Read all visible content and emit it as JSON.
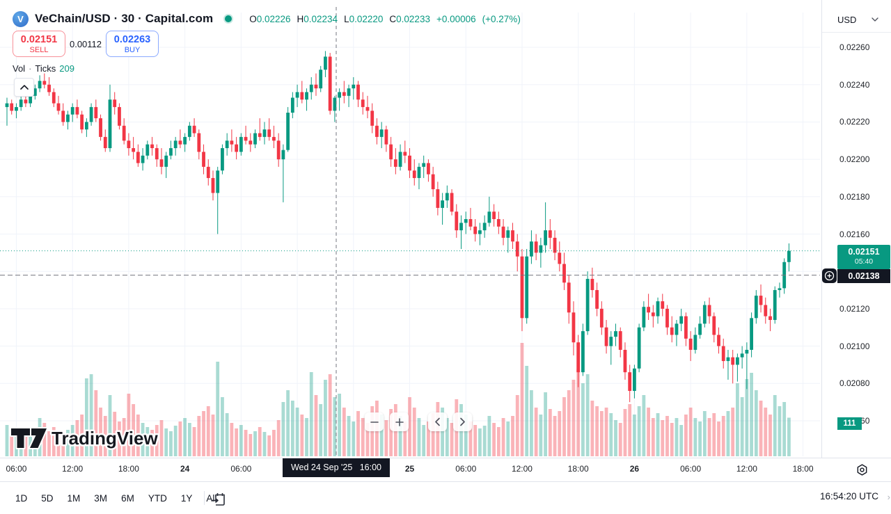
{
  "header": {
    "symbol_title": "VeChain/USD · 30 · Capital.com",
    "market_status": "open",
    "ohlc": {
      "o_label": "O",
      "o": "0.02226",
      "h_label": "H",
      "h": "0.02234",
      "l_label": "L",
      "l": "0.02220",
      "c_label": "C",
      "c": "0.02233",
      "change": "+0.00006",
      "change_pct": "(+0.27%)"
    },
    "sell_button": {
      "price": "0.02151",
      "label": "SELL"
    },
    "buy_button": {
      "price": "0.02263",
      "label": "BUY"
    },
    "spread": "0.00112",
    "legend": {
      "vol_label": "Vol",
      "sep": "·",
      "ticks_label": "Ticks",
      "ticks_value": "209"
    }
  },
  "price_axis": {
    "currency": "USD",
    "ticks": [
      "0.02260",
      "0.02240",
      "0.02220",
      "0.02200",
      "0.02180",
      "0.02160",
      "0.02140",
      "0.02120",
      "0.02100",
      "0.02080",
      "0.02060"
    ],
    "current_price_label": {
      "price": "0.02151",
      "countdown": "05:40"
    },
    "crosshair_price_label": "0.02138",
    "volume_label": "111"
  },
  "time_axis": {
    "crosshair_label": "Wed 24 Sep '25   16:00",
    "labels": [
      {
        "index": 2,
        "text": "06:00",
        "bold": false
      },
      {
        "index": 14,
        "text": "12:00",
        "bold": false
      },
      {
        "index": 26,
        "text": "18:00",
        "bold": false
      },
      {
        "index": 38,
        "text": "24",
        "bold": true
      },
      {
        "index": 50,
        "text": "06:00",
        "bold": false
      },
      {
        "index": 86,
        "text": "25",
        "bold": true
      },
      {
        "index": 98,
        "text": "06:00",
        "bold": false
      },
      {
        "index": 110,
        "text": "12:00",
        "bold": false
      },
      {
        "index": 122,
        "text": "18:00",
        "bold": false
      },
      {
        "index": 134,
        "text": "26",
        "bold": true
      },
      {
        "index": 146,
        "text": "06:00",
        "bold": false
      },
      {
        "index": 158,
        "text": "12:00",
        "bold": false
      },
      {
        "index": 170,
        "text": "18:00",
        "bold": false
      }
    ]
  },
  "toolbar": {
    "ranges": [
      "1D",
      "5D",
      "1M",
      "3M",
      "6M",
      "YTD",
      "1Y",
      "All"
    ],
    "clock": "16:54:20 UTC"
  },
  "watermark": "TradingView",
  "colors": {
    "up": "#089981",
    "down": "#f23645",
    "vol_up": "rgba(8,153,129,0.35)",
    "vol_down": "rgba(242,54,69,0.38)",
    "grid": "#f0f3fa",
    "crosshair": "#73767f",
    "label_bg": "#131722",
    "buy_accent": "#2962ff",
    "sell_accent": "#f23645"
  },
  "chart_data": {
    "type": "candlestick",
    "symbol": "VeChain/USD",
    "interval": "30 minutes",
    "title": "VeChain/USD · 30 · Capital.com",
    "ylabel": "USD",
    "price_axis_ticks": [
      0.0226,
      0.0224,
      0.0222,
      0.022,
      0.0218,
      0.0216,
      0.0214,
      0.0212,
      0.021,
      0.0208,
      0.0206
    ],
    "visible_price_range": [
      0.02055,
      0.02265
    ],
    "current_price": 0.02151,
    "bar_close_countdown": "05:40",
    "crosshair_price": 0.02138,
    "crosshair_time": "Wed 24 Sep '25 16:00",
    "last_volume": 111,
    "tick_count": 209,
    "time_gridline_indices": [
      2,
      14,
      26,
      38,
      50,
      62,
      74,
      86,
      98,
      110,
      122,
      134,
      146,
      158,
      170
    ],
    "candles_format": [
      "open",
      "high",
      "low",
      "close"
    ],
    "candles": [
      [
        0.02228,
        0.02233,
        0.02218,
        0.0223
      ],
      [
        0.0223,
        0.02232,
        0.02224,
        0.02226
      ],
      [
        0.02226,
        0.0223,
        0.02222,
        0.02228
      ],
      [
        0.02228,
        0.02234,
        0.02226,
        0.02232
      ],
      [
        0.02232,
        0.02235,
        0.02228,
        0.0223
      ],
      [
        0.0223,
        0.02236,
        0.02228,
        0.02234
      ],
      [
        0.02234,
        0.0224,
        0.02232,
        0.02238
      ],
      [
        0.02238,
        0.02245,
        0.02236,
        0.02242
      ],
      [
        0.02242,
        0.02246,
        0.02238,
        0.0224
      ],
      [
        0.0224,
        0.02244,
        0.02234,
        0.02236
      ],
      [
        0.02236,
        0.02238,
        0.02228,
        0.0223
      ],
      [
        0.0223,
        0.02234,
        0.02224,
        0.02226
      ],
      [
        0.02226,
        0.0223,
        0.02218,
        0.0222
      ],
      [
        0.0222,
        0.02226,
        0.02216,
        0.02224
      ],
      [
        0.02224,
        0.0223,
        0.0222,
        0.02228
      ],
      [
        0.02228,
        0.02232,
        0.02222,
        0.02224
      ],
      [
        0.02224,
        0.02226,
        0.02214,
        0.02216
      ],
      [
        0.02216,
        0.02222,
        0.02212,
        0.0222
      ],
      [
        0.0222,
        0.0223,
        0.02218,
        0.02228
      ],
      [
        0.02228,
        0.02232,
        0.0222,
        0.02222
      ],
      [
        0.02222,
        0.02224,
        0.0221,
        0.02212
      ],
      [
        0.02212,
        0.02216,
        0.02204,
        0.02206
      ],
      [
        0.02206,
        0.0224,
        0.02204,
        0.02232
      ],
      [
        0.02232,
        0.02236,
        0.02224,
        0.02228
      ],
      [
        0.02228,
        0.0223,
        0.02216,
        0.02218
      ],
      [
        0.02218,
        0.02222,
        0.02208,
        0.0221
      ],
      [
        0.0221,
        0.02214,
        0.02202,
        0.02206
      ],
      [
        0.02206,
        0.02212,
        0.022,
        0.02204
      ],
      [
        0.02204,
        0.02208,
        0.02196,
        0.02198
      ],
      [
        0.02198,
        0.02206,
        0.02194,
        0.02202
      ],
      [
        0.02202,
        0.0221,
        0.022,
        0.02208
      ],
      [
        0.02208,
        0.02212,
        0.02202,
        0.02206
      ],
      [
        0.02206,
        0.02208,
        0.02196,
        0.022
      ],
      [
        0.022,
        0.02206,
        0.02192,
        0.02196
      ],
      [
        0.02196,
        0.02204,
        0.0219,
        0.02202
      ],
      [
        0.02202,
        0.0221,
        0.022,
        0.02206
      ],
      [
        0.02206,
        0.02212,
        0.02202,
        0.0221
      ],
      [
        0.0221,
        0.02216,
        0.02206,
        0.02208
      ],
      [
        0.02208,
        0.02214,
        0.02204,
        0.02212
      ],
      [
        0.02212,
        0.0222,
        0.0221,
        0.02218
      ],
      [
        0.02218,
        0.02222,
        0.02212,
        0.02214
      ],
      [
        0.02214,
        0.02216,
        0.022,
        0.02204
      ],
      [
        0.02204,
        0.02208,
        0.02192,
        0.02196
      ],
      [
        0.02196,
        0.022,
        0.02186,
        0.0219
      ],
      [
        0.0219,
        0.02194,
        0.02178,
        0.02182
      ],
      [
        0.02182,
        0.02196,
        0.0216,
        0.02194
      ],
      [
        0.02194,
        0.02208,
        0.02192,
        0.02206
      ],
      [
        0.02206,
        0.02214,
        0.02202,
        0.0221
      ],
      [
        0.0221,
        0.02216,
        0.02204,
        0.02208
      ],
      [
        0.02208,
        0.02212,
        0.022,
        0.02204
      ],
      [
        0.02204,
        0.02214,
        0.02202,
        0.02212
      ],
      [
        0.02212,
        0.02218,
        0.02208,
        0.0221
      ],
      [
        0.0221,
        0.02214,
        0.02204,
        0.02208
      ],
      [
        0.02208,
        0.02216,
        0.02206,
        0.02214
      ],
      [
        0.02214,
        0.02222,
        0.0221,
        0.02212
      ],
      [
        0.02212,
        0.0222,
        0.02208,
        0.02216
      ],
      [
        0.02216,
        0.02222,
        0.0221,
        0.02212
      ],
      [
        0.02212,
        0.02218,
        0.02206,
        0.0221
      ],
      [
        0.0221,
        0.02214,
        0.02196,
        0.022
      ],
      [
        0.022,
        0.02208,
        0.02177,
        0.02205
      ],
      [
        0.02205,
        0.02228,
        0.02204,
        0.02225
      ],
      [
        0.02225,
        0.02236,
        0.02222,
        0.02233
      ],
      [
        0.02233,
        0.0224,
        0.02228,
        0.02236
      ],
      [
        0.02236,
        0.02242,
        0.0223,
        0.02232
      ],
      [
        0.02232,
        0.02238,
        0.02226,
        0.02236
      ],
      [
        0.02236,
        0.02244,
        0.02232,
        0.0224
      ],
      [
        0.0224,
        0.02246,
        0.02234,
        0.02238
      ],
      [
        0.02238,
        0.0225,
        0.02236,
        0.02248
      ],
      [
        0.02248,
        0.02258,
        0.02244,
        0.02255
      ],
      [
        0.02255,
        0.02257,
        0.02224,
        0.02226
      ],
      [
        0.02226,
        0.02234,
        0.0222,
        0.02233
      ],
      [
        0.02233,
        0.02238,
        0.02226,
        0.02236
      ],
      [
        0.02236,
        0.02242,
        0.0223,
        0.02234
      ],
      [
        0.02234,
        0.0224,
        0.02228,
        0.02238
      ],
      [
        0.02238,
        0.02244,
        0.02232,
        0.0224
      ],
      [
        0.0224,
        0.02242,
        0.02228,
        0.02232
      ],
      [
        0.02232,
        0.02236,
        0.02224,
        0.02228
      ],
      [
        0.02228,
        0.02234,
        0.02222,
        0.02226
      ],
      [
        0.02226,
        0.0223,
        0.02214,
        0.02218
      ],
      [
        0.02218,
        0.02222,
        0.02208,
        0.02212
      ],
      [
        0.02212,
        0.0222,
        0.02206,
        0.02216
      ],
      [
        0.02216,
        0.02218,
        0.02204,
        0.02208
      ],
      [
        0.02208,
        0.02212,
        0.02196,
        0.022
      ],
      [
        0.022,
        0.02206,
        0.02192,
        0.02196
      ],
      [
        0.02196,
        0.02208,
        0.02194,
        0.02204
      ],
      [
        0.02204,
        0.0221,
        0.02198,
        0.02202
      ],
      [
        0.02202,
        0.02206,
        0.0219,
        0.02194
      ],
      [
        0.02194,
        0.022,
        0.02186,
        0.0219
      ],
      [
        0.0219,
        0.02198,
        0.02184,
        0.02196
      ],
      [
        0.02196,
        0.02202,
        0.0219,
        0.02198
      ],
      [
        0.02198,
        0.022,
        0.02188,
        0.02192
      ],
      [
        0.02192,
        0.02196,
        0.0218,
        0.02184
      ],
      [
        0.02184,
        0.02188,
        0.0217,
        0.02174
      ],
      [
        0.02174,
        0.02182,
        0.02165,
        0.02178
      ],
      [
        0.02178,
        0.02186,
        0.02174,
        0.02182
      ],
      [
        0.02182,
        0.02184,
        0.0217,
        0.02172
      ],
      [
        0.02172,
        0.02176,
        0.02158,
        0.02162
      ],
      [
        0.02162,
        0.0217,
        0.02152,
        0.02166
      ],
      [
        0.02166,
        0.02172,
        0.0216,
        0.02168
      ],
      [
        0.02168,
        0.02174,
        0.02162,
        0.02164
      ],
      [
        0.02164,
        0.02168,
        0.02156,
        0.0216
      ],
      [
        0.0216,
        0.02166,
        0.02154,
        0.02162
      ],
      [
        0.02162,
        0.0217,
        0.02158,
        0.02166
      ],
      [
        0.02166,
        0.0218,
        0.02164,
        0.02172
      ],
      [
        0.02172,
        0.02176,
        0.02164,
        0.02168
      ],
      [
        0.02168,
        0.02172,
        0.0216,
        0.02164
      ],
      [
        0.02164,
        0.02168,
        0.02154,
        0.02158
      ],
      [
        0.02158,
        0.02164,
        0.0215,
        0.02162
      ],
      [
        0.02162,
        0.02166,
        0.02152,
        0.02156
      ],
      [
        0.02156,
        0.0216,
        0.0214,
        0.02148
      ],
      [
        0.02148,
        0.02152,
        0.02108,
        0.02115
      ],
      [
        0.02115,
        0.02152,
        0.02112,
        0.02148
      ],
      [
        0.02148,
        0.02162,
        0.02144,
        0.02156
      ],
      [
        0.02156,
        0.0216,
        0.02146,
        0.0215
      ],
      [
        0.0215,
        0.02158,
        0.02142,
        0.02154
      ],
      [
        0.02154,
        0.02177,
        0.0215,
        0.02162
      ],
      [
        0.02162,
        0.02168,
        0.02152,
        0.02158
      ],
      [
        0.02158,
        0.02162,
        0.02146,
        0.0215
      ],
      [
        0.0215,
        0.02156,
        0.0214,
        0.02144
      ],
      [
        0.02144,
        0.0215,
        0.0213,
        0.02134
      ],
      [
        0.02134,
        0.02138,
        0.02112,
        0.02118
      ],
      [
        0.02118,
        0.02124,
        0.02095,
        0.02102
      ],
      [
        0.02102,
        0.02106,
        0.02078,
        0.02086
      ],
      [
        0.02086,
        0.02112,
        0.02084,
        0.02108
      ],
      [
        0.02108,
        0.0214,
        0.02106,
        0.02136
      ],
      [
        0.02136,
        0.02142,
        0.02126,
        0.0213
      ],
      [
        0.0213,
        0.02134,
        0.02116,
        0.0212
      ],
      [
        0.0212,
        0.02124,
        0.02106,
        0.0211
      ],
      [
        0.0211,
        0.02114,
        0.02096,
        0.021
      ],
      [
        0.021,
        0.02108,
        0.0209,
        0.02105
      ],
      [
        0.02105,
        0.02112,
        0.021,
        0.02108
      ],
      [
        0.02108,
        0.0211,
        0.02094,
        0.02098
      ],
      [
        0.02098,
        0.02102,
        0.02082,
        0.02086
      ],
      [
        0.02086,
        0.0209,
        0.0207,
        0.02076
      ],
      [
        0.02076,
        0.0209,
        0.02072,
        0.02088
      ],
      [
        0.02088,
        0.02112,
        0.02086,
        0.0211
      ],
      [
        0.0211,
        0.02124,
        0.02108,
        0.02121
      ],
      [
        0.02121,
        0.02128,
        0.02114,
        0.02118
      ],
      [
        0.02118,
        0.02122,
        0.0211,
        0.02116
      ],
      [
        0.02116,
        0.02126,
        0.02112,
        0.02124
      ],
      [
        0.02124,
        0.02128,
        0.02116,
        0.0212
      ],
      [
        0.0212,
        0.02122,
        0.02106,
        0.0211
      ],
      [
        0.0211,
        0.02116,
        0.02102,
        0.02106
      ],
      [
        0.02106,
        0.02114,
        0.021,
        0.02112
      ],
      [
        0.02112,
        0.0212,
        0.02108,
        0.02116
      ],
      [
        0.02116,
        0.02118,
        0.021,
        0.02104
      ],
      [
        0.02104,
        0.02108,
        0.02092,
        0.02098
      ],
      [
        0.02098,
        0.0211,
        0.02096,
        0.02106
      ],
      [
        0.02106,
        0.02116,
        0.02104,
        0.02112
      ],
      [
        0.02112,
        0.02124,
        0.0211,
        0.02122
      ],
      [
        0.02122,
        0.02126,
        0.02112,
        0.02116
      ],
      [
        0.02116,
        0.02118,
        0.02102,
        0.02106
      ],
      [
        0.02106,
        0.0211,
        0.02096,
        0.021
      ],
      [
        0.021,
        0.02104,
        0.02088,
        0.02092
      ],
      [
        0.02092,
        0.02098,
        0.02082,
        0.02094
      ],
      [
        0.02094,
        0.02098,
        0.0208,
        0.0209
      ],
      [
        0.0209,
        0.02096,
        0.02081,
        0.02094
      ],
      [
        0.02094,
        0.021,
        0.02088,
        0.02096
      ],
      [
        0.02096,
        0.02102,
        0.02077,
        0.02098
      ],
      [
        0.02098,
        0.02118,
        0.02094,
        0.02115
      ],
      [
        0.02115,
        0.0213,
        0.02112,
        0.02127
      ],
      [
        0.02127,
        0.02133,
        0.02118,
        0.02122
      ],
      [
        0.02122,
        0.02126,
        0.02112,
        0.02116
      ],
      [
        0.02116,
        0.0212,
        0.02108,
        0.02114
      ],
      [
        0.02114,
        0.02132,
        0.02112,
        0.0213
      ],
      [
        0.0213,
        0.02134,
        0.02126,
        0.02131
      ],
      [
        0.02131,
        0.02147,
        0.02128,
        0.02145
      ],
      [
        0.02145,
        0.02155,
        0.0214,
        0.02151
      ]
    ],
    "volumes": [
      90,
      76,
      60,
      70,
      56,
      64,
      80,
      110,
      96,
      72,
      84,
      70,
      60,
      76,
      90,
      104,
      120,
      224,
      236,
      190,
      140,
      116,
      176,
      128,
      100,
      110,
      180,
      150,
      120,
      96,
      84,
      76,
      90,
      104,
      80,
      72,
      88,
      100,
      110,
      96,
      84,
      116,
      130,
      144,
      120,
      272,
      170,
      124,
      96,
      80,
      90,
      76,
      64,
      72,
      84,
      70,
      60,
      76,
      104,
      156,
      190,
      160,
      140,
      120,
      110,
      242,
      176,
      150,
      220,
      236,
      170,
      180,
      140,
      116,
      100,
      130,
      110,
      96,
      144,
      160,
      120,
      104,
      136,
      150,
      116,
      100,
      170,
      140,
      110,
      90,
      100,
      124,
      156,
      140,
      110,
      96,
      164,
      150,
      120,
      100,
      90,
      80,
      88,
      116,
      96,
      84,
      110,
      100,
      116,
      176,
      326,
      260,
      190,
      140,
      120,
      184,
      136,
      116,
      130,
      170,
      190,
      220,
      250,
      210,
      236,
      160,
      144,
      130,
      140,
      124,
      104,
      96,
      136,
      150,
      120,
      144,
      176,
      140,
      110,
      124,
      104,
      116,
      96,
      110,
      90,
      120,
      140,
      110,
      100,
      130,
      110,
      124,
      100,
      116,
      130,
      140,
      210,
      170,
      222,
      240,
      190,
      160,
      140,
      120,
      176,
      144,
      156,
      111
    ]
  }
}
